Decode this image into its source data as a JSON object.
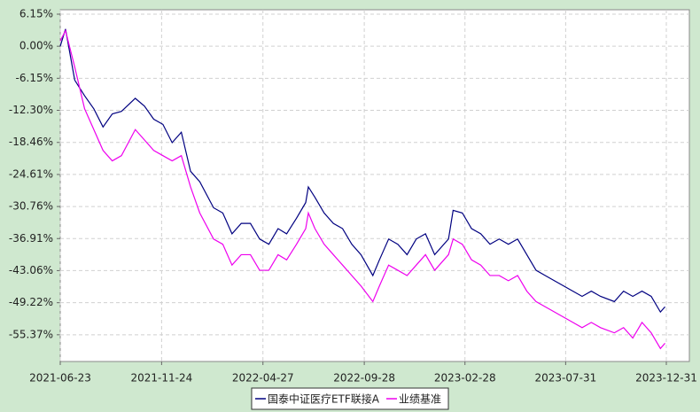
{
  "chart_data": {
    "type": "line",
    "x": [
      "2021-06-23",
      "2021-07-01",
      "2021-07-15",
      "2021-07-30",
      "2021-08-13",
      "2021-08-27",
      "2021-09-10",
      "2021-09-24",
      "2021-10-15",
      "2021-10-29",
      "2021-11-12",
      "2021-11-26",
      "2021-12-10",
      "2021-12-24",
      "2022-01-07",
      "2022-01-21",
      "2022-02-11",
      "2022-02-25",
      "2022-03-11",
      "2022-03-25",
      "2022-04-08",
      "2022-04-22",
      "2022-05-06",
      "2022-05-20",
      "2022-06-02",
      "2022-06-17",
      "2022-07-01",
      "2022-07-05",
      "2022-07-15",
      "2022-07-29",
      "2022-08-12",
      "2022-08-26",
      "2022-09-09",
      "2022-09-23",
      "2022-10-11",
      "2022-10-21",
      "2022-11-04",
      "2022-11-18",
      "2022-12-02",
      "2022-12-16",
      "2022-12-30",
      "2023-01-13",
      "2023-02-03",
      "2023-02-10",
      "2023-02-24",
      "2023-03-10",
      "2023-03-24",
      "2023-04-07",
      "2023-04-21",
      "2023-05-05",
      "2023-05-19",
      "2023-06-02",
      "2023-06-16",
      "2023-06-30",
      "2023-07-14",
      "2023-07-28",
      "2023-08-11",
      "2023-08-25",
      "2023-09-08",
      "2023-09-22",
      "2023-10-13",
      "2023-10-27",
      "2023-11-10",
      "2023-11-24",
      "2023-12-08",
      "2023-12-22",
      "2023-12-29"
    ],
    "series": [
      {
        "name": "国泰中证医疗ETF联接A",
        "color": "#000080",
        "values": [
          0,
          3.3,
          -6.5,
          -9.5,
          -12,
          -15.5,
          -13,
          -12.5,
          -10,
          -11.5,
          -14,
          -15,
          -18.5,
          -16.5,
          -24,
          -26,
          -31,
          -32,
          -36,
          -34,
          -34,
          -37,
          -38,
          -35,
          -36,
          -33,
          -30,
          -27,
          -29,
          -32,
          -34,
          -35,
          -38,
          -40,
          -44,
          -41,
          -37,
          -38,
          -40,
          -37,
          -36,
          -40,
          -37,
          -31.5,
          -32,
          -35,
          -36,
          -38,
          -37,
          -38,
          -37,
          -40,
          -43,
          -44,
          -45,
          -46,
          -47,
          -48,
          -47,
          -48,
          -49,
          -47,
          -48,
          -47,
          -48,
          -51,
          -50
        ]
      },
      {
        "name": "业绩基准",
        "color": "#ee00ee",
        "values": [
          1,
          3,
          -4,
          -12,
          -16,
          -20,
          -22,
          -21,
          -16,
          -18,
          -20,
          -21,
          -22,
          -21,
          -27,
          -32,
          -37,
          -38,
          -42,
          -40,
          -40,
          -43,
          -43,
          -40,
          -41,
          -38,
          -35,
          -32,
          -35,
          -38,
          -40,
          -42,
          -44,
          -46,
          -49,
          -46,
          -42,
          -43,
          -44,
          -42,
          -40,
          -43,
          -40,
          -37,
          -38,
          -41,
          -42,
          -44,
          -44,
          -45,
          -44,
          -47,
          -49,
          -50,
          -51,
          -52,
          -53,
          -54,
          -53,
          -54,
          -55,
          -54,
          -56,
          -53,
          -55,
          -58,
          -57
        ]
      }
    ],
    "xlim": [
      "2021-06-23",
      "2024-02-04"
    ],
    "xticks": [
      "2021-06-23",
      "2021-11-24",
      "2022-04-27",
      "2022-09-28",
      "2023-02-28",
      "2023-07-31",
      "2023-12-31"
    ],
    "ylim": [
      7.0,
      -60.5
    ],
    "yticks": [
      {
        "value": 6.15,
        "label": "6.15%"
      },
      {
        "value": 0,
        "label": "0.00%"
      },
      {
        "value": -6.15,
        "label": "-6.15%"
      },
      {
        "value": -12.3,
        "label": "-12.30%"
      },
      {
        "value": -18.46,
        "label": "-18.46%"
      },
      {
        "value": -24.61,
        "label": "-24.61%"
      },
      {
        "value": -30.76,
        "label": "-30.76%"
      },
      {
        "value": -36.91,
        "label": "-36.91%"
      },
      {
        "value": -43.06,
        "label": "-43.06%"
      },
      {
        "value": -49.22,
        "label": "-49.22%"
      },
      {
        "value": -55.37,
        "label": "-55.37%"
      }
    ],
    "grid": true,
    "legend": "bottom"
  }
}
